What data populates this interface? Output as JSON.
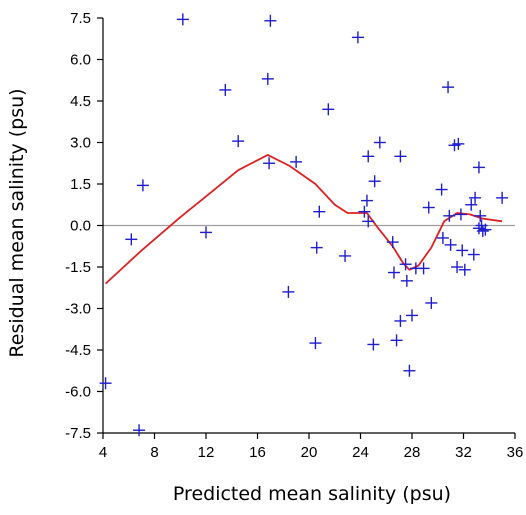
{
  "chart_data": {
    "type": "scatter",
    "title": "",
    "xlabel": "Predicted mean salinity (psu)",
    "ylabel": "Residual mean salinity (psu)",
    "xlim": [
      4,
      36
    ],
    "ylim": [
      -7.5,
      7.5
    ],
    "x_ticks": [
      "4",
      "8",
      "12",
      "16",
      "20",
      "24",
      "28",
      "32",
      "36"
    ],
    "y_ticks": [
      "7.5",
      "6.0",
      "4.5",
      "3.0",
      "1.5",
      "0.0",
      "-1.5",
      "-3.0",
      "-4.5",
      "-6.0",
      "-7.5"
    ],
    "grid": false,
    "legend": "none",
    "zero_line": 0,
    "colors": {
      "points": "#1f1fd0",
      "smooth_line": "#e02020",
      "zero_line": "#a0a0a0",
      "axis": "#000000"
    },
    "series": [
      {
        "kind": "points",
        "marker": "plus",
        "points": [
          [
            4.2,
            -5.7
          ],
          [
            6.2,
            -0.5
          ],
          [
            6.8,
            -7.4
          ],
          [
            7.1,
            1.45
          ],
          [
            10.2,
            7.45
          ],
          [
            12.0,
            -0.25
          ],
          [
            13.5,
            4.9
          ],
          [
            14.5,
            3.05
          ],
          [
            16.8,
            5.3
          ],
          [
            17.0,
            7.4
          ],
          [
            16.9,
            2.25
          ],
          [
            18.4,
            -2.4
          ],
          [
            19.0,
            2.3
          ],
          [
            20.5,
            -4.25
          ],
          [
            20.6,
            -0.8
          ],
          [
            20.8,
            0.5
          ],
          [
            21.5,
            4.2
          ],
          [
            22.8,
            -1.1
          ],
          [
            23.8,
            6.8
          ],
          [
            24.3,
            0.5
          ],
          [
            24.5,
            0.9
          ],
          [
            24.6,
            2.5
          ],
          [
            24.6,
            0.15
          ],
          [
            25.0,
            -4.3
          ],
          [
            25.1,
            1.6
          ],
          [
            25.5,
            3.0
          ],
          [
            26.5,
            -0.6
          ],
          [
            26.6,
            -1.7
          ],
          [
            26.8,
            -4.15
          ],
          [
            27.1,
            -3.45
          ],
          [
            27.1,
            2.5
          ],
          [
            27.5,
            -1.4
          ],
          [
            27.6,
            -2.0
          ],
          [
            27.8,
            -5.25
          ],
          [
            28.0,
            -3.25
          ],
          [
            28.3,
            -1.55
          ],
          [
            28.9,
            -1.55
          ],
          [
            29.3,
            0.65
          ],
          [
            29.5,
            -2.8
          ],
          [
            30.3,
            1.3
          ],
          [
            30.4,
            -0.45
          ],
          [
            30.8,
            5.0
          ],
          [
            30.9,
            0.35
          ],
          [
            31.0,
            -0.7
          ],
          [
            31.3,
            2.9
          ],
          [
            31.5,
            -1.5
          ],
          [
            31.6,
            2.95
          ],
          [
            31.9,
            -0.9
          ],
          [
            31.8,
            0.4
          ],
          [
            32.1,
            -1.6
          ],
          [
            32.6,
            0.75
          ],
          [
            32.8,
            -1.05
          ],
          [
            32.9,
            1.0
          ],
          [
            33.2,
            2.1
          ],
          [
            33.2,
            -0.1
          ],
          [
            33.3,
            0.35
          ],
          [
            33.4,
            0.0
          ],
          [
            33.5,
            -0.2
          ],
          [
            33.7,
            -0.15
          ],
          [
            35.0,
            1.0
          ]
        ]
      },
      {
        "kind": "line",
        "points": [
          [
            4.2,
            -2.1
          ],
          [
            7.0,
            -0.9
          ],
          [
            10.0,
            0.3
          ],
          [
            12.0,
            1.05
          ],
          [
            14.5,
            2.0
          ],
          [
            16.8,
            2.55
          ],
          [
            18.5,
            2.15
          ],
          [
            20.5,
            1.5
          ],
          [
            22.0,
            0.75
          ],
          [
            23.0,
            0.45
          ],
          [
            24.5,
            0.45
          ],
          [
            25.3,
            -0.05
          ],
          [
            26.5,
            -0.75
          ],
          [
            27.3,
            -1.35
          ],
          [
            27.8,
            -1.6
          ],
          [
            28.5,
            -1.45
          ],
          [
            29.5,
            -0.8
          ],
          [
            30.5,
            0.15
          ],
          [
            31.5,
            0.45
          ],
          [
            32.5,
            0.4
          ],
          [
            33.5,
            0.25
          ],
          [
            35.0,
            0.15
          ]
        ]
      }
    ]
  }
}
